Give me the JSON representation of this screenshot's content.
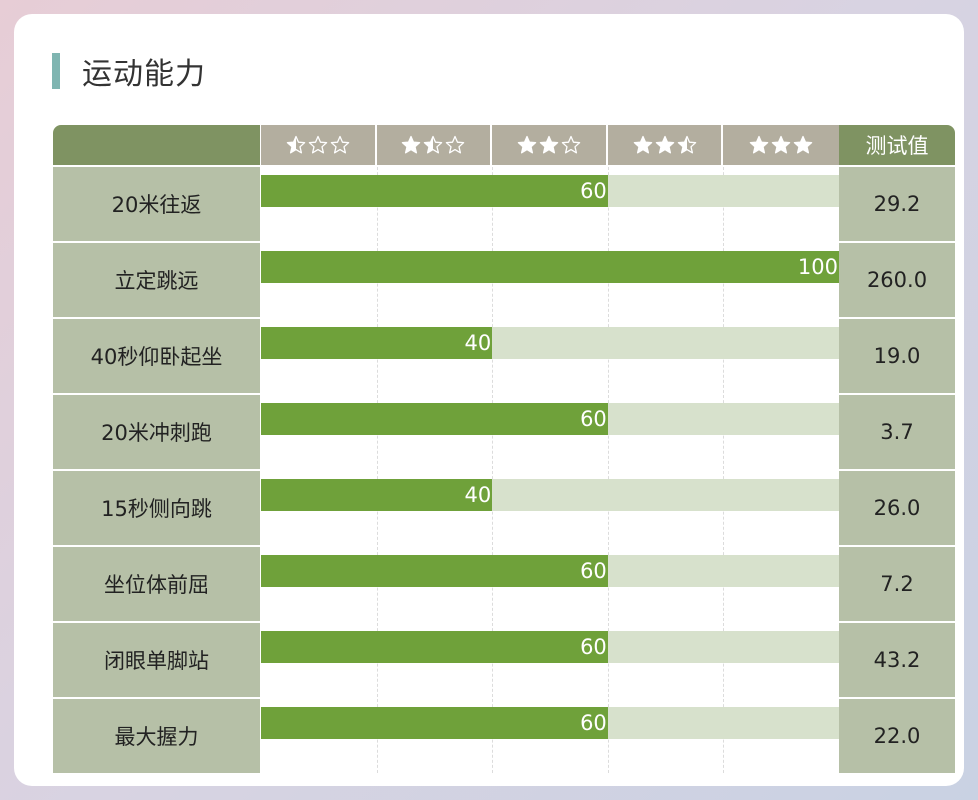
{
  "title": "运动能力",
  "columns": {
    "test_header": "测试值",
    "star_levels": [
      {
        "stars": [
          0.5,
          0,
          0
        ],
        "icon": "one-half-star-icon"
      },
      {
        "stars": [
          1,
          0.5,
          0
        ],
        "icon": "one-and-half-stars-icon"
      },
      {
        "stars": [
          1,
          1,
          0
        ],
        "icon": "two-stars-icon"
      },
      {
        "stars": [
          1,
          1,
          0.5
        ],
        "icon": "two-and-half-stars-icon"
      },
      {
        "stars": [
          1,
          1,
          1
        ],
        "icon": "three-stars-icon"
      }
    ]
  },
  "rows": [
    {
      "label": "20米往返",
      "score": 60,
      "score_label": "60",
      "value": "29.2"
    },
    {
      "label": "立定跳远",
      "score": 100,
      "score_label": "100",
      "value": "260.0"
    },
    {
      "label": "40秒仰卧起坐",
      "score": 40,
      "score_label": "40",
      "value": "19.0"
    },
    {
      "label": "20米冲刺跑",
      "score": 60,
      "score_label": "60",
      "value": "3.7"
    },
    {
      "label": "15秒侧向跳",
      "score": 40,
      "score_label": "40",
      "value": "26.0"
    },
    {
      "label": "坐位体前屈",
      "score": 60,
      "score_label": "60",
      "value": "7.2"
    },
    {
      "label": "闭眼单脚站",
      "score": 60,
      "score_label": "60",
      "value": "43.2"
    },
    {
      "label": "最大握力",
      "score": 60,
      "score_label": "60",
      "value": "22.0"
    }
  ],
  "score_max": 100,
  "colors": {
    "accent_bar": "#7fb5b1",
    "header_green": "#7f9362",
    "star_header": "#b3ae9f",
    "label_bg": "#b6c0a7",
    "fill": "#6fa13a",
    "track": "#d7e1cc"
  }
}
